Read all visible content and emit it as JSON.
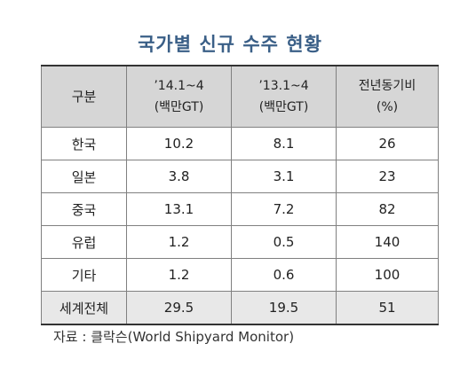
{
  "title": "국가별 신규 수주 현황",
  "table": {
    "headers": [
      {
        "line1": "구분",
        "line2": ""
      },
      {
        "line1": "’14.1~4",
        "line2": "(백만GT)"
      },
      {
        "line1": "’13.1~4",
        "line2": "(백만GT)"
      },
      {
        "line1": "전년동기비",
        "line2": "(%)"
      }
    ],
    "rows": [
      [
        "한국",
        "10.2",
        "8.1",
        "26"
      ],
      [
        "일본",
        "3.8",
        "3.1",
        "23"
      ],
      [
        "중국",
        "13.1",
        "7.2",
        "82"
      ],
      [
        "유럽",
        "1.2",
        "0.5",
        "140"
      ],
      [
        "기타",
        "1.2",
        "0.6",
        "100"
      ]
    ],
    "total": [
      "세계전체",
      "29.5",
      "19.5",
      "51"
    ]
  },
  "source": "자료 : 클락슨(World Shipyard Monitor)"
}
